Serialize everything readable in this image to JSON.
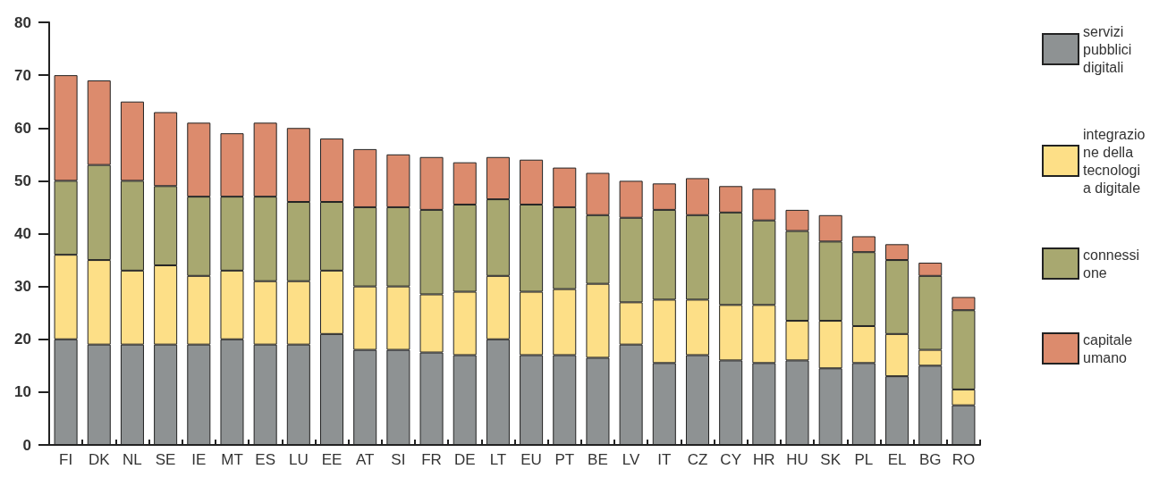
{
  "chart_data": {
    "type": "bar",
    "stacked": true,
    "categories": [
      "FI",
      "DK",
      "NL",
      "SE",
      "IE",
      "MT",
      "ES",
      "LU",
      "EE",
      "AT",
      "SI",
      "FR",
      "DE",
      "LT",
      "EU",
      "PT",
      "BE",
      "LV",
      "IT",
      "CZ",
      "CY",
      "HR",
      "HU",
      "SK",
      "PL",
      "EL",
      "BG",
      "RO"
    ],
    "series": [
      {
        "name": "servizi pubblici digitali",
        "color": "#8e9293",
        "values": [
          20,
          19,
          19,
          19,
          19,
          20,
          19,
          19,
          21,
          18,
          18,
          17.5,
          17,
          20,
          17,
          17,
          16.5,
          19,
          15.5,
          17,
          16,
          15.5,
          16,
          14.5,
          15.5,
          13,
          15,
          7.5
        ]
      },
      {
        "name": "integrazione della tecnologia digitale",
        "color": "#fddf87",
        "values": [
          16,
          16,
          14,
          15,
          13,
          13,
          12,
          12,
          12,
          12,
          12,
          11,
          12,
          12,
          12,
          12.5,
          14,
          8,
          12,
          10.5,
          10.5,
          11,
          7.5,
          9,
          7,
          8,
          3,
          3
        ]
      },
      {
        "name": "connessione",
        "color": "#a8a870",
        "values": [
          14,
          18,
          17,
          15,
          15,
          14,
          16,
          15,
          13,
          15,
          15,
          16,
          16.5,
          14.5,
          16.5,
          15.5,
          13,
          16,
          17,
          16,
          17.5,
          16,
          17,
          15,
          14,
          14,
          14,
          15
        ]
      },
      {
        "name": "capitale umano",
        "color": "#dc8b6d",
        "values": [
          20,
          16,
          15,
          14,
          14,
          12,
          14,
          14,
          12,
          11,
          10,
          10,
          8,
          8,
          8.5,
          7.5,
          8,
          7,
          5,
          7,
          5,
          6,
          4,
          5,
          3,
          3,
          2.5,
          2.5
        ]
      }
    ],
    "ylim": [
      0,
      80
    ],
    "yticks": [
      0,
      10,
      20,
      30,
      40,
      50,
      60,
      70,
      80
    ],
    "grid": false,
    "legend": "right"
  }
}
